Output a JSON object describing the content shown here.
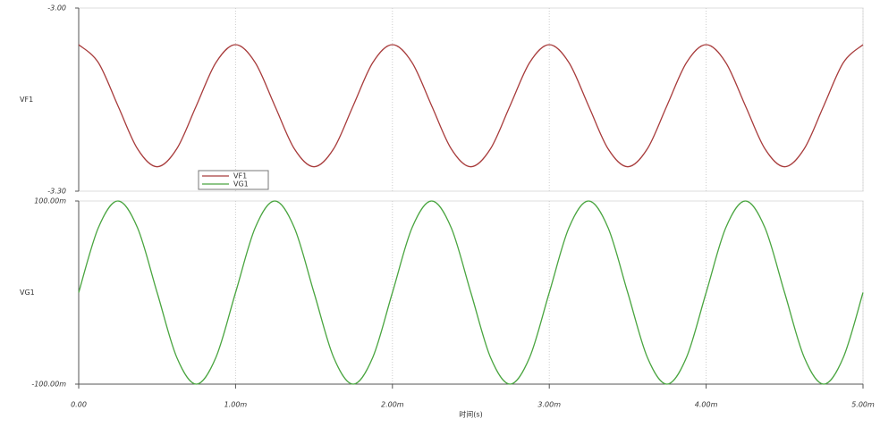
{
  "chart_data": [
    {
      "type": "line",
      "x": [
        0,
        0.000125,
        0.00025,
        0.000375,
        0.0005,
        0.000625,
        0.00075,
        0.000875,
        0.001,
        0.001125,
        0.00125,
        0.001375,
        0.0015,
        0.001625,
        0.00175,
        0.001875,
        0.002,
        0.002125,
        0.00225,
        0.002375,
        0.0025,
        0.002625,
        0.00275,
        0.002875,
        0.003,
        0.003125,
        0.00325,
        0.003375,
        0.0035,
        0.003625,
        0.00375,
        0.003875,
        0.004,
        0.004125,
        0.00425,
        0.004375,
        0.0045,
        0.004625,
        0.00475,
        0.004875,
        0.005
      ],
      "xlim": [
        0,
        0.005
      ],
      "ylabel": "VF1",
      "ylim": [
        -3.3,
        -3.0
      ],
      "yticks": [
        {
          "value": -3.3,
          "label": "-3.30"
        },
        {
          "value": -3.0,
          "label": "-3.00"
        }
      ],
      "series": [
        {
          "name": "VF1",
          "color": "#a83c3c",
          "values": [
            -3.06,
            -3.0893,
            -3.16,
            -3.2307,
            -3.26,
            -3.2307,
            -3.16,
            -3.0893,
            -3.06,
            -3.0893,
            -3.16,
            -3.2307,
            -3.26,
            -3.2307,
            -3.16,
            -3.0893,
            -3.06,
            -3.0893,
            -3.16,
            -3.2307,
            -3.26,
            -3.2307,
            -3.16,
            -3.0893,
            -3.06,
            -3.0893,
            -3.16,
            -3.2307,
            -3.26,
            -3.2307,
            -3.16,
            -3.0893,
            -3.06,
            -3.0893,
            -3.16,
            -3.2307,
            -3.26,
            -3.2307,
            -3.16,
            -3.0893,
            -3.06
          ]
        }
      ]
    },
    {
      "type": "line",
      "x": [
        0,
        0.000125,
        0.00025,
        0.000375,
        0.0005,
        0.000625,
        0.00075,
        0.000875,
        0.001,
        0.001125,
        0.00125,
        0.001375,
        0.0015,
        0.001625,
        0.00175,
        0.001875,
        0.002,
        0.002125,
        0.00225,
        0.002375,
        0.0025,
        0.002625,
        0.00275,
        0.002875,
        0.003,
        0.003125,
        0.00325,
        0.003375,
        0.0035,
        0.003625,
        0.00375,
        0.003875,
        0.004,
        0.004125,
        0.00425,
        0.004375,
        0.0045,
        0.004625,
        0.00475,
        0.004875,
        0.005
      ],
      "xlim": [
        0,
        0.005
      ],
      "xticks": [
        {
          "value": 0,
          "label": "0.00"
        },
        {
          "value": 0.001,
          "label": "1.00m"
        },
        {
          "value": 0.002,
          "label": "2.00m"
        },
        {
          "value": 0.003,
          "label": "3.00m"
        },
        {
          "value": 0.004,
          "label": "4.00m"
        },
        {
          "value": 0.005,
          "label": "5.00m"
        }
      ],
      "xlabel": "时间(s)",
      "ylabel": "VG1",
      "ylim": [
        -0.1,
        0.1
      ],
      "yticks": [
        {
          "value": -0.1,
          "label": "-100.00m"
        },
        {
          "value": 0.1,
          "label": "100.00m"
        }
      ],
      "series": [
        {
          "name": "VG1",
          "color": "#4aa540",
          "values": [
            0,
            0.0707,
            0.1,
            0.0707,
            0,
            -0.0707,
            -0.1,
            -0.0707,
            0,
            0.0707,
            0.1,
            0.0707,
            0,
            -0.0707,
            -0.1,
            -0.0707,
            0,
            0.0707,
            0.1,
            0.0707,
            0,
            -0.0707,
            -0.1,
            -0.0707,
            0,
            0.0707,
            0.1,
            0.0707,
            0,
            -0.0707,
            -0.1,
            -0.0707,
            0,
            0.0707,
            0.1,
            0.0707,
            0,
            -0.0707,
            -0.1,
            -0.0707,
            0
          ]
        }
      ]
    }
  ]
}
